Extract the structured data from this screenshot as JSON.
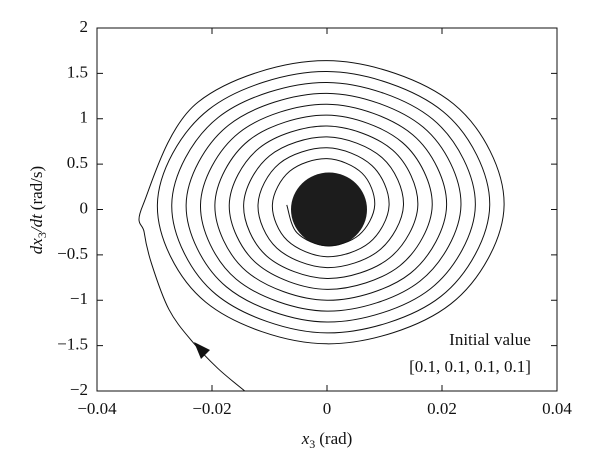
{
  "chart_data": {
    "type": "line",
    "xlabel": {
      "italic": "x",
      "subscript": "3",
      "unit": "(rad)"
    },
    "ylabel": {
      "italic": "dx",
      "subscript": "3",
      "italic2": "/dt",
      "unit": "(rad/s)"
    },
    "annotation": [
      "Initial value",
      "[0.1, 0.1, 0.1, 0.1]"
    ],
    "xlim": [
      -0.04,
      0.04
    ],
    "ylim": [
      -2,
      2
    ],
    "xticks": [
      {
        "value": -0.04,
        "label": "−0.04"
      },
      {
        "value": -0.02,
        "label": "−0.02"
      },
      0,
      0.02,
      0.04
    ],
    "yticks": [
      {
        "value": -2,
        "label": "−2"
      },
      {
        "value": -1.5,
        "label": "−1.5"
      },
      {
        "value": -1,
        "label": "−1"
      },
      {
        "value": -0.5,
        "label": "−0.5"
      },
      0,
      0.5,
      1,
      1.5,
      2
    ],
    "series": [
      {
        "color": "#111111",
        "x": [
          -0.0143,
          -0.019,
          -0.0235,
          -0.0275,
          -0.0305,
          -0.0318,
          -0.032,
          -0.0224,
          0,
          0.022,
          0.0308,
          0.0215,
          0,
          -0.0211,
          -0.0295,
          -0.0206,
          0,
          0.0202,
          0.0283,
          0.0198,
          0,
          -0.0193,
          -0.027,
          -0.0189,
          0,
          0.0184,
          0.0258,
          0.018,
          0,
          -0.0175,
          -0.0245,
          -0.0171,
          0,
          0.0167,
          0.0233,
          0.0162,
          0,
          -0.0158,
          -0.022,
          -0.0153,
          0,
          0.0149,
          0.0208,
          0.0145,
          0,
          -0.014,
          -0.0195,
          -0.0136,
          0,
          0.0131,
          0.0183,
          0.0127,
          0,
          -0.0122,
          -0.017,
          -0.0118,
          0,
          0.0114,
          0.0158,
          0.0109,
          0,
          -0.0105,
          -0.0145,
          -0.01,
          0,
          0.0096,
          0.0133,
          0.0091,
          0,
          -0.0087,
          -0.012,
          -0.0083,
          0,
          0.0078,
          0.0108,
          0.0074,
          0,
          -0.0069,
          -0.0095,
          -0.0065,
          0,
          0.0061,
          0.0083,
          0.0056,
          0,
          -0.0052,
          -0.007
        ],
        "values": [
          -2.0,
          -1.75,
          -1.45,
          -1.1,
          -0.6,
          -0.25,
          0.05,
          1.185,
          1.64,
          1.164,
          0.05,
          -1.042,
          -1.48,
          -1.021,
          0.05,
          1.1,
          1.52,
          1.079,
          0.05,
          -0.958,
          -1.36,
          -0.936,
          0.05,
          1.015,
          1.4,
          0.994,
          0.05,
          -0.873,
          -1.24,
          -0.852,
          0.05,
          0.93,
          1.28,
          0.909,
          0.05,
          -0.788,
          -1.12,
          -0.767,
          0.05,
          0.846,
          1.16,
          0.824,
          0.05,
          -0.703,
          -1.0,
          -0.682,
          0.05,
          0.761,
          1.04,
          0.739,
          0.05,
          -0.618,
          -0.88,
          -0.597,
          0.05,
          0.676,
          0.92,
          0.655,
          0.05,
          -0.533,
          -0.76,
          -0.512,
          0.05,
          0.591,
          0.8,
          0.57,
          0.05,
          -0.449,
          -0.64,
          -0.427,
          0.05,
          0.506,
          0.68,
          0.485,
          0.05,
          -0.364,
          -0.52,
          -0.342,
          0.05,
          0.421,
          0.56,
          0.4,
          0.05,
          -0.279,
          -0.4,
          -0.258,
          0.05
        ]
      }
    ]
  }
}
